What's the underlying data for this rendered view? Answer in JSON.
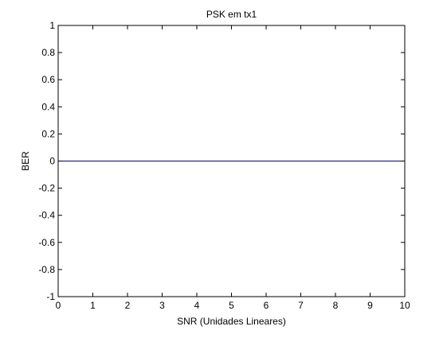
{
  "chart_data": {
    "type": "line",
    "title": "PSK em tx1",
    "xlabel": "SNR (Unidades Lineares)",
    "ylabel": "BER",
    "xlim": [
      0,
      10
    ],
    "ylim": [
      -1,
      1
    ],
    "xticks": [
      0,
      1,
      2,
      3,
      4,
      5,
      6,
      7,
      8,
      9,
      10
    ],
    "xtick_labels": [
      "0",
      "1",
      "2",
      "3",
      "4",
      "5",
      "6",
      "7",
      "8",
      "9",
      "10"
    ],
    "yticks": [
      -1,
      -0.8,
      -0.6,
      -0.4,
      -0.2,
      0,
      0.2,
      0.4,
      0.6,
      0.8,
      1
    ],
    "ytick_labels": [
      "-1",
      "-0.8",
      "-0.6",
      "-0.4",
      "-0.2",
      "0",
      "0.2",
      "0.4",
      "0.6",
      "0.8",
      "1"
    ],
    "grid": false,
    "series": [
      {
        "color": "#000080",
        "x": [
          0,
          1,
          2,
          3,
          4,
          5,
          6,
          7,
          8,
          9,
          10
        ],
        "y": [
          0,
          0,
          0,
          0,
          0,
          0,
          0,
          0,
          0,
          0,
          0
        ]
      }
    ]
  }
}
